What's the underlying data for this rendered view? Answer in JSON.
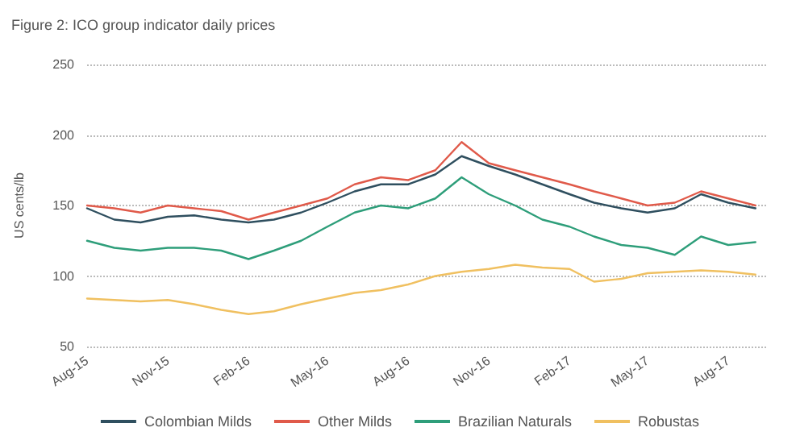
{
  "chart_data": {
    "type": "line",
    "title": "Figure 2: ICO group indicator daily prices",
    "ylabel": "US cents/lb",
    "x": [
      "2015-08-01",
      "2015-09-01",
      "2015-10-01",
      "2015-11-01",
      "2015-12-01",
      "2016-01-01",
      "2016-02-01",
      "2016-03-01",
      "2016-04-01",
      "2016-05-01",
      "2016-06-01",
      "2016-07-01",
      "2016-08-01",
      "2016-09-01",
      "2016-10-01",
      "2016-11-01",
      "2016-12-01",
      "2017-01-01",
      "2017-02-01",
      "2017-03-01",
      "2017-04-01",
      "2017-05-01",
      "2017-06-01",
      "2017-07-01",
      "2017-08-01",
      "2017-09-01"
    ],
    "series": [
      {
        "name": "Colombian Milds",
        "color": "#2f4f5f",
        "values": [
          148,
          140,
          138,
          142,
          143,
          140,
          138,
          140,
          145,
          152,
          160,
          165,
          165,
          172,
          185,
          178,
          172,
          165,
          158,
          152,
          148,
          145,
          148,
          158,
          152,
          148
        ]
      },
      {
        "name": "Other Milds",
        "color": "#e05a4a",
        "values": [
          150,
          148,
          145,
          150,
          148,
          146,
          140,
          145,
          150,
          155,
          165,
          170,
          168,
          175,
          195,
          180,
          175,
          170,
          165,
          160,
          155,
          150,
          152,
          160,
          155,
          150
        ]
      },
      {
        "name": "Brazilian Naturals",
        "color": "#2e9e7a",
        "values": [
          125,
          120,
          118,
          120,
          120,
          118,
          112,
          118,
          125,
          135,
          145,
          150,
          148,
          155,
          170,
          158,
          150,
          140,
          135,
          128,
          122,
          120,
          115,
          128,
          122,
          124
        ]
      },
      {
        "name": "Robustas",
        "color": "#f0c060",
        "values": [
          84,
          83,
          82,
          83,
          80,
          76,
          73,
          75,
          80,
          84,
          88,
          90,
          94,
          100,
          103,
          105,
          108,
          106,
          105,
          96,
          98,
          102,
          103,
          104,
          103,
          101
        ]
      }
    ],
    "xlim": [
      "2015-08-01",
      "2017-09-15"
    ],
    "xticks": [
      {
        "value": "2015-08-01",
        "label": "Aug-15"
      },
      {
        "value": "2015-11-01",
        "label": "Nov-15"
      },
      {
        "value": "2016-02-01",
        "label": "Feb-16"
      },
      {
        "value": "2016-05-01",
        "label": "May-16"
      },
      {
        "value": "2016-08-01",
        "label": "Aug-16"
      },
      {
        "value": "2016-11-01",
        "label": "Nov-16"
      },
      {
        "value": "2017-02-01",
        "label": "Feb-17"
      },
      {
        "value": "2017-05-01",
        "label": "May-17"
      },
      {
        "value": "2017-08-01",
        "label": "Aug-17"
      }
    ],
    "ylim": [
      50,
      250
    ],
    "yticks": [
      50,
      100,
      150,
      200,
      250
    ],
    "grid": "y",
    "legend": "bottom",
    "marker": "none",
    "line_style": "solid"
  }
}
